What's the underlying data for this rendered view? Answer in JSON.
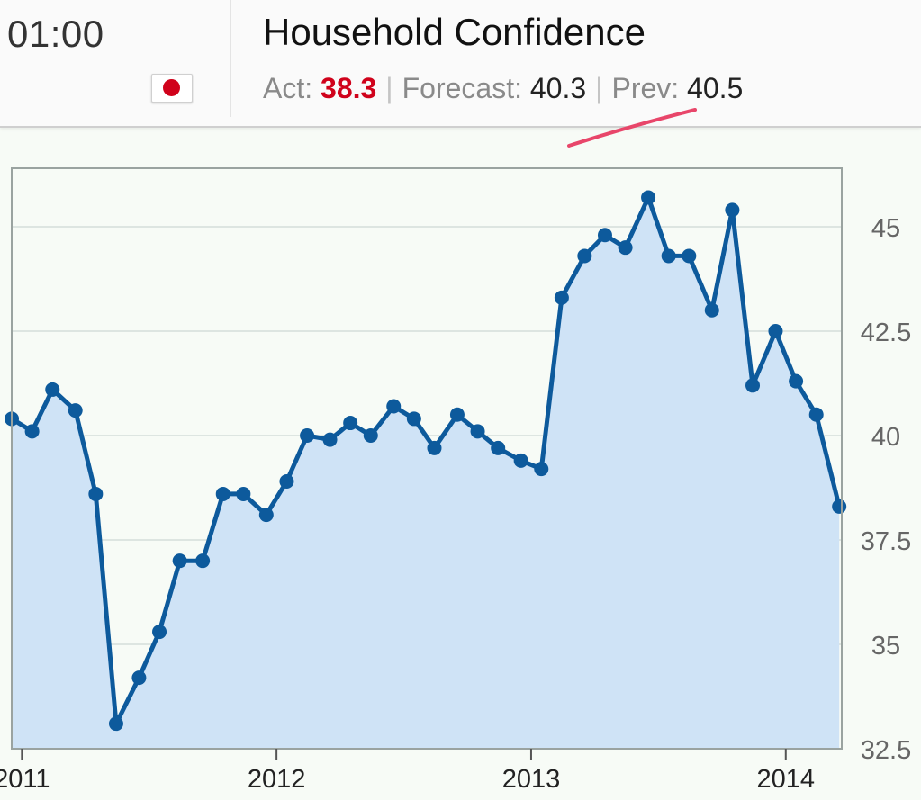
{
  "header": {
    "time": "01:00",
    "flag_icon": "japan-flag-icon",
    "title": "Household Confidence",
    "act_label": "Act:",
    "act_value": "38.3",
    "forecast_label": "Forecast:",
    "forecast_value": "40.3",
    "prev_label": "Prev:",
    "prev_value": "40.5",
    "separator": "|",
    "act_color": "#d0021b"
  },
  "chart_data": {
    "type": "area",
    "title": "",
    "xlabel": "",
    "ylabel": "",
    "ylim": [
      32.5,
      46.4
    ],
    "yticks": [
      "45",
      "42.5",
      "40",
      "37.5",
      "35",
      "32.5"
    ],
    "ytick_values": [
      45,
      42.5,
      40,
      37.5,
      35,
      32.5
    ],
    "xticks": [
      "2011",
      "2012",
      "2013",
      "2014"
    ],
    "xtick_values": [
      2011.0,
      2012.0,
      2013.0,
      2014.0
    ],
    "xlim": [
      2010.96,
      2012.0,
      2013.0,
      2014.2
    ],
    "x_range": [
      2010.96,
      2014.22
    ],
    "grid": true,
    "y_axis_position": "right",
    "line_color": "#0d5a9c",
    "fill_color": "#cfe3f6",
    "series": [
      {
        "x": [
          2010.96,
          2011.04,
          2011.12,
          2011.21,
          2011.29,
          2011.37,
          2011.46,
          2011.54,
          2011.62,
          2011.71,
          2011.79,
          2011.87,
          2011.96,
          2012.04,
          2012.12,
          2012.21,
          2012.29,
          2012.37,
          2012.46,
          2012.54,
          2012.62,
          2012.71,
          2012.79,
          2012.87,
          2012.96,
          2013.04,
          2013.12,
          2013.21,
          2013.29,
          2013.37,
          2013.46,
          2013.54,
          2013.62,
          2013.71,
          2013.79,
          2013.87,
          2013.96,
          2014.04,
          2014.12,
          2014.21
        ],
        "values": [
          40.4,
          40.1,
          41.1,
          40.6,
          38.6,
          33.1,
          34.2,
          35.3,
          37.0,
          37.0,
          38.6,
          38.6,
          38.1,
          38.9,
          40.0,
          39.9,
          40.3,
          40.0,
          40.7,
          40.4,
          39.7,
          40.5,
          40.1,
          39.7,
          39.4,
          39.2,
          43.3,
          44.3,
          44.8,
          44.5,
          45.7,
          44.3,
          44.3,
          43.0,
          45.4,
          41.2,
          42.5,
          41.3,
          40.5,
          38.3
        ]
      }
    ]
  }
}
